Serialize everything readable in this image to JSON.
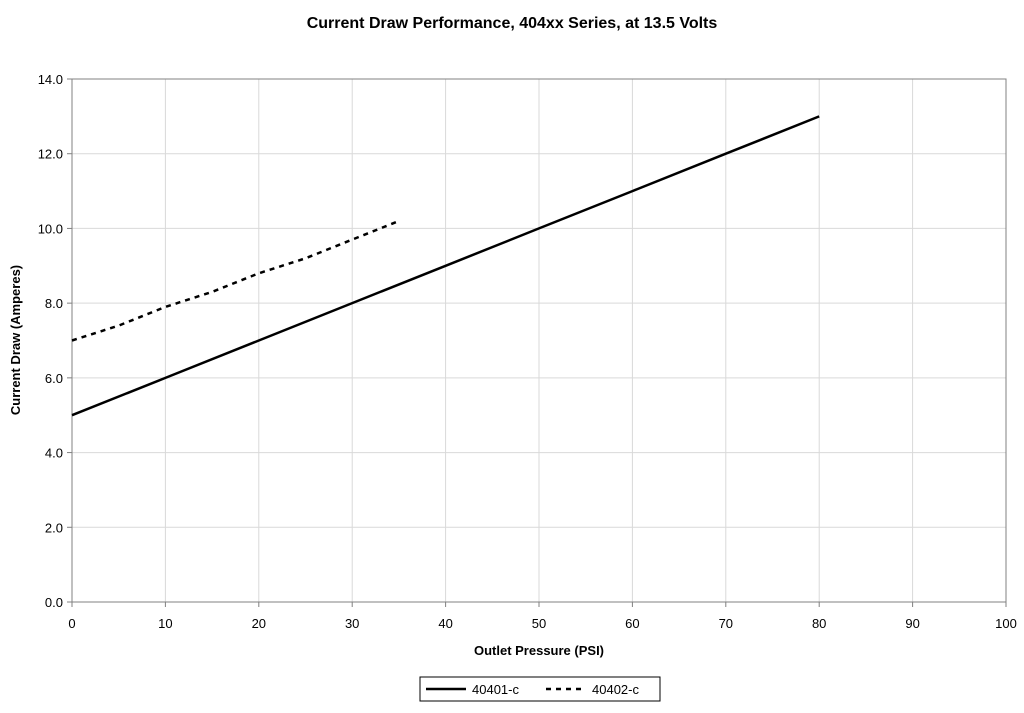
{
  "chart_data": {
    "type": "line",
    "title": "Current Draw Performance, 404xx  Series, at 13.5 Volts",
    "xlabel": "Outlet Pressure (PSI)",
    "ylabel": "Current Draw (Amperes)",
    "xlim": [
      0,
      100
    ],
    "ylim": [
      0,
      14
    ],
    "xticks": [
      "0",
      "10",
      "20",
      "30",
      "40",
      "50",
      "60",
      "70",
      "80",
      "90",
      "100"
    ],
    "yticks": [
      "0.0",
      "2.0",
      "4.0",
      "6.0",
      "8.0",
      "10.0",
      "12.0",
      "14.0"
    ],
    "grid": true,
    "legend_position": "bottom",
    "series": [
      {
        "name": "40401-c",
        "style": "solid",
        "color": "#000000",
        "x": [
          0,
          10,
          20,
          30,
          40,
          50,
          60,
          70,
          80
        ],
        "y": [
          5.0,
          6.0,
          7.0,
          8.0,
          9.0,
          10.0,
          11.0,
          12.0,
          13.0
        ]
      },
      {
        "name": "40402-c",
        "style": "dashed",
        "color": "#000000",
        "x": [
          0,
          5,
          10,
          15,
          20,
          25,
          30,
          35
        ],
        "y": [
          7.0,
          7.4,
          7.9,
          8.3,
          8.8,
          9.2,
          9.7,
          10.2
        ]
      }
    ]
  }
}
